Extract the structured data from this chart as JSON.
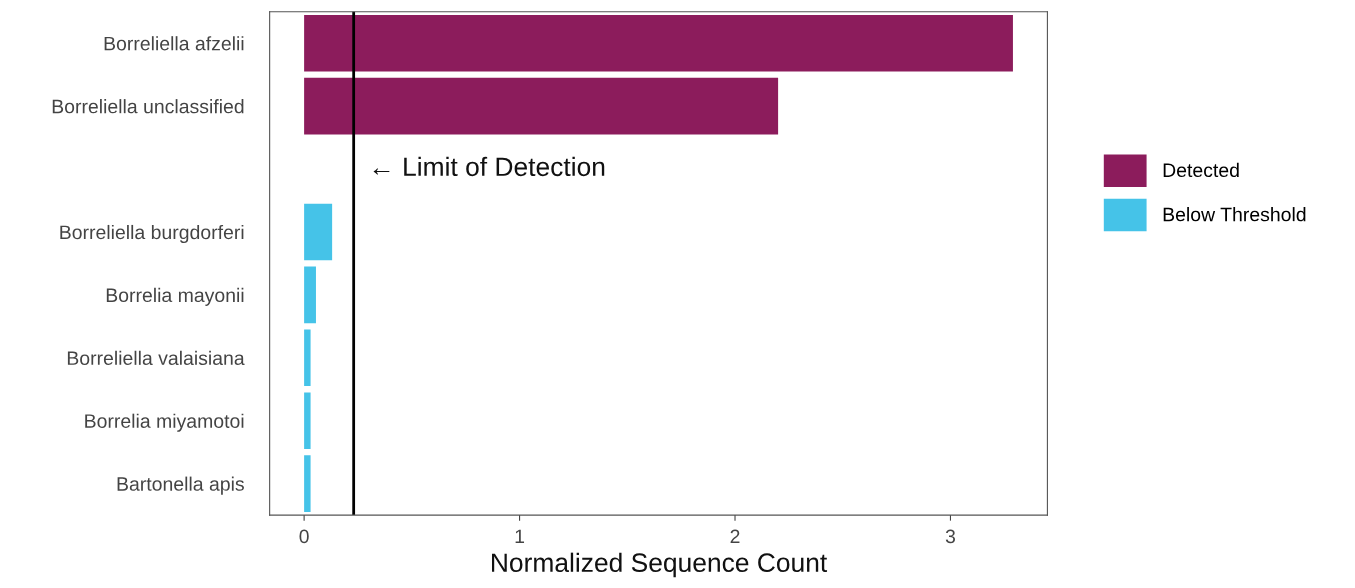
{
  "chart_data": {
    "type": "bar",
    "orientation": "horizontal",
    "xlabel": "Normalized Sequence Count",
    "categories": [
      "Borreliella afzelii",
      "Borreliella unclassified",
      null,
      "Borreliella burgdorferi",
      "Borrelia mayonii",
      "Borreliella valaisiana",
      "Borrelia miyamotoi",
      "Bartonella apis"
    ],
    "series": [
      {
        "name": "Detected",
        "color": "#8c1c5c",
        "values": [
          3.29,
          2.2,
          null,
          null,
          null,
          null,
          null,
          null
        ]
      },
      {
        "name": "Below Threshold",
        "color": "#45c3e8",
        "values": [
          null,
          null,
          null,
          0.13,
          0.055,
          0.03,
          0.03,
          0.03
        ]
      }
    ],
    "xlim": [
      -0.16,
      3.45
    ],
    "xticks": [
      0,
      1,
      2,
      3
    ],
    "ref_lines": [
      {
        "axis": "x",
        "value": 0.23,
        "label": "← Limit of Detection",
        "color": "#000000"
      }
    ],
    "grid": false,
    "legend": "right"
  }
}
